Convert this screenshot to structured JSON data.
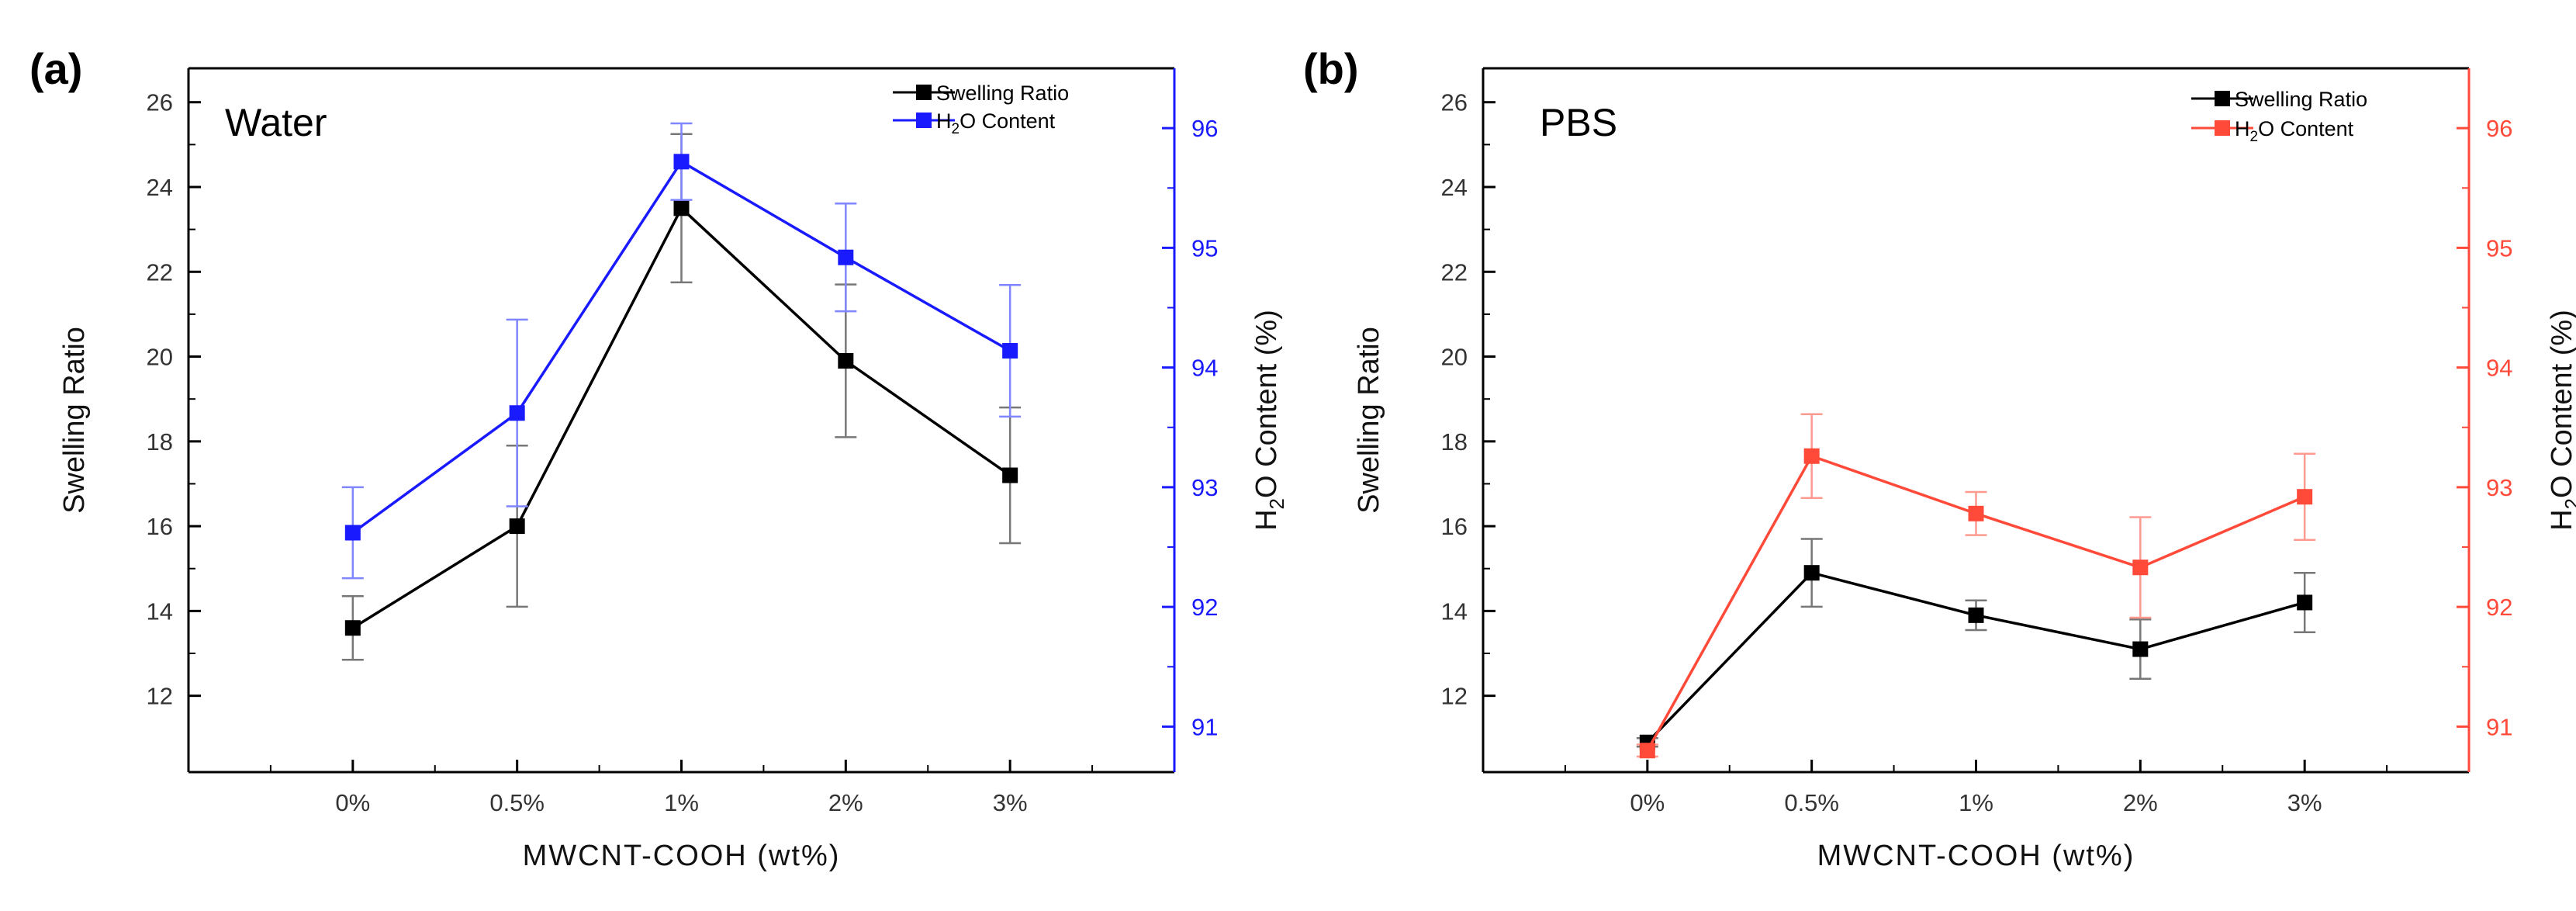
{
  "chart_data": [
    {
      "type": "line",
      "panel_label": "(a)",
      "annotation": "Water",
      "xlabel": "MWCNT-COOH (wt%)",
      "ylabel": "Swelling Ratio",
      "y2label_parts": [
        "H",
        "2",
        "O Content (%)"
      ],
      "categories": [
        "0%",
        "0.5%",
        "1%",
        "2%",
        "3%"
      ],
      "ylim": [
        10.2,
        26.8
      ],
      "yticks": [
        12,
        14,
        16,
        18,
        20,
        22,
        24,
        26
      ],
      "y2lim": [
        90.62,
        96.5
      ],
      "y2ticks": [
        91,
        92,
        93,
        94,
        95,
        96
      ],
      "right_axis_color": "#1a1aff",
      "series": [
        {
          "name": "Swelling Ratio",
          "axis": "left",
          "color": "#000000",
          "values": [
            13.6,
            16.0,
            23.5,
            19.9,
            17.2
          ],
          "errors": [
            0.75,
            1.9,
            1.75,
            1.8,
            1.6
          ]
        },
        {
          "name": "H2O Content",
          "label_parts": [
            "H",
            "2",
            "O Content"
          ],
          "axis": "right",
          "color": "#1a1aff",
          "values": [
            92.62,
            93.62,
            95.72,
            94.92,
            94.14
          ],
          "errors": [
            0.38,
            0.78,
            0.32,
            0.45,
            0.55
          ]
        }
      ]
    },
    {
      "type": "line",
      "panel_label": "(b)",
      "annotation": "PBS",
      "xlabel": "MWCNT-COOH (wt%)",
      "ylabel": "Swelling Ratio",
      "y2label_parts": [
        "H",
        "2",
        "O Content (%)"
      ],
      "categories": [
        "0%",
        "0.5%",
        "1%",
        "2%",
        "3%"
      ],
      "ylim": [
        10.2,
        26.8
      ],
      "yticks": [
        12,
        14,
        16,
        18,
        20,
        22,
        24,
        26
      ],
      "y2lim": [
        90.62,
        96.5
      ],
      "y2ticks": [
        91,
        92,
        93,
        94,
        95,
        96
      ],
      "right_axis_color": "#ff4a3a",
      "series": [
        {
          "name": "Swelling Ratio",
          "axis": "left",
          "color": "#000000",
          "values": [
            10.9,
            14.9,
            13.9,
            13.1,
            14.2
          ],
          "errors": [
            0.1,
            0.8,
            0.35,
            0.7,
            0.7
          ]
        },
        {
          "name": "H2O Content",
          "label_parts": [
            "H",
            "2",
            "O Content"
          ],
          "axis": "right",
          "color": "#ff4a3a",
          "values": [
            90.8,
            93.26,
            92.78,
            92.33,
            92.92
          ],
          "errors": [
            0.05,
            0.35,
            0.18,
            0.42,
            0.36
          ]
        }
      ]
    }
  ]
}
